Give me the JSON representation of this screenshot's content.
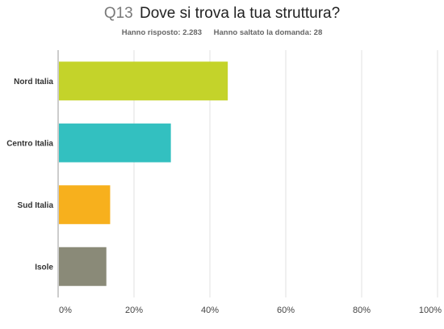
{
  "header": {
    "question_number": "Q13",
    "question_text": "Dove si trova la tua struttura?",
    "answered": "Hanno risposto: 2.283",
    "skipped": "Hanno saltato la domanda: 28"
  },
  "chart_data": {
    "type": "bar",
    "orientation": "horizontal",
    "title": "Dove si trova la tua struttura?",
    "categories": [
      "Nord Italia",
      "Centro Italia",
      "Sud Italia",
      "Isole"
    ],
    "values": [
      44.5,
      29.5,
      13.5,
      12.5
    ],
    "colors": [
      "#c4d32a",
      "#33c0c0",
      "#f7b01d",
      "#8a8a78"
    ],
    "xlim": [
      0,
      100
    ],
    "xticks": [
      "0%",
      "20%",
      "40%",
      "60%",
      "80%",
      "100%"
    ],
    "xtick_values": [
      0,
      20,
      40,
      60,
      80,
      100
    ],
    "grid": true,
    "unit": "%"
  }
}
